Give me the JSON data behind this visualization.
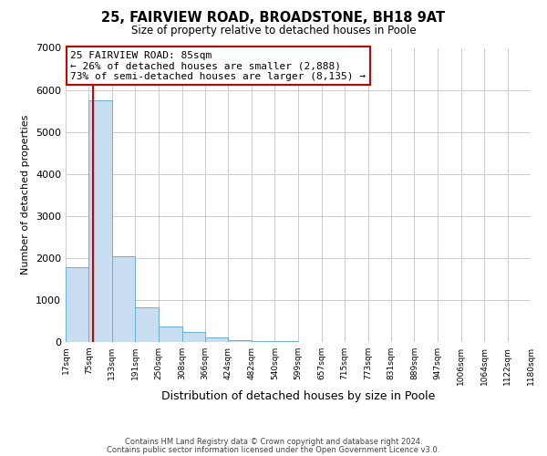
{
  "title": "25, FAIRVIEW ROAD, BROADSTONE, BH18 9AT",
  "subtitle": "Size of property relative to detached houses in Poole",
  "xlabel": "Distribution of detached houses by size in Poole",
  "ylabel": "Number of detached properties",
  "bar_values": [
    1780,
    5750,
    2050,
    830,
    370,
    230,
    110,
    50,
    30,
    20,
    10,
    5,
    0,
    0,
    0,
    0,
    0,
    0,
    0,
    0
  ],
  "bin_edges": [
    17,
    75,
    133,
    191,
    250,
    308,
    366,
    424,
    482,
    540,
    599,
    657,
    715,
    773,
    831,
    889,
    947,
    1006,
    1064,
    1122,
    1180
  ],
  "tick_labels": [
    "17sqm",
    "75sqm",
    "133sqm",
    "191sqm",
    "250sqm",
    "308sqm",
    "366sqm",
    "424sqm",
    "482sqm",
    "540sqm",
    "599sqm",
    "657sqm",
    "715sqm",
    "773sqm",
    "831sqm",
    "889sqm",
    "947sqm",
    "1006sqm",
    "1064sqm",
    "1122sqm",
    "1180sqm"
  ],
  "bar_color": "#c9ddf0",
  "bar_edge_color": "#6aaed6",
  "property_line_x": 85,
  "property_line_color": "#cc0000",
  "ylim": [
    0,
    7000
  ],
  "yticks": [
    0,
    1000,
    2000,
    3000,
    4000,
    5000,
    6000,
    7000
  ],
  "annotation_title": "25 FAIRVIEW ROAD: 85sqm",
  "annotation_line1": "← 26% of detached houses are smaller (2,888)",
  "annotation_line2": "73% of semi-detached houses are larger (8,135) →",
  "annotation_box_color": "#ffffff",
  "annotation_box_edge": "#cc0000",
  "footer_line1": "Contains HM Land Registry data © Crown copyright and database right 2024.",
  "footer_line2": "Contains public sector information licensed under the Open Government Licence v3.0.",
  "background_color": "#ffffff",
  "grid_color": "#cccccc"
}
